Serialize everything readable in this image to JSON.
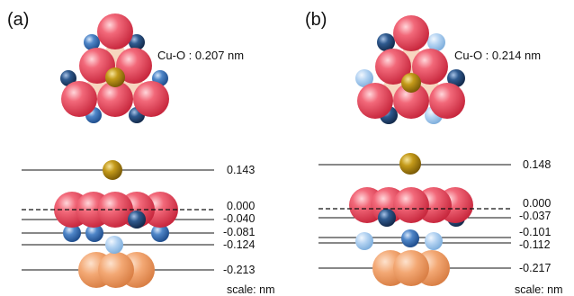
{
  "colors": {
    "oxygen": "#e8485c",
    "copper_gold": "#b08a10",
    "ti_dark": "#22456e",
    "ti_mid": "#3d72b4",
    "ti_light": "#9cc3ea",
    "orange": "#f0a06a",
    "pale_orange": "#f7cfae"
  },
  "panels": [
    {
      "id": "a",
      "label": "(a)",
      "bond": "Cu-O : 0.207 nm",
      "levels": [
        "0.143",
        "0.000",
        "-0.040",
        "-0.081",
        "-0.124",
        "-0.213"
      ],
      "scale": "scale: nm"
    },
    {
      "id": "b",
      "label": "(b)",
      "bond": "Cu-O : 0.214 nm",
      "levels": [
        "0.148",
        "0.000",
        "-0.037",
        "-0.101",
        "-0.112",
        "-0.217"
      ],
      "scale": "scale: nm"
    }
  ]
}
